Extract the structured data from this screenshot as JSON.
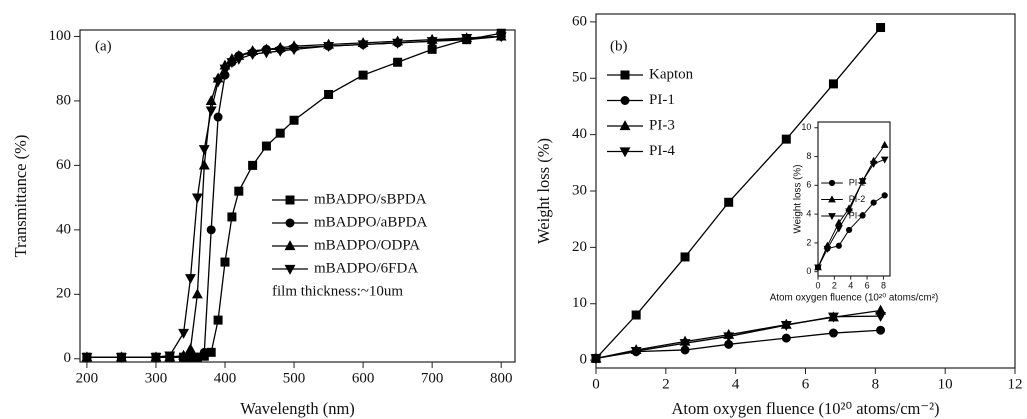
{
  "chart_data": [
    {
      "type": "line",
      "panel_label": "(a)",
      "x_label": "Wavelength (nm)",
      "y_label": "Transmittance (%)",
      "annotation": "film thickness:~10um",
      "xlim": [
        190,
        820
      ],
      "ylim": [
        -1,
        102
      ],
      "xticks": [
        200,
        300,
        400,
        500,
        600,
        700,
        800
      ],
      "yticks": [
        0,
        20,
        40,
        60,
        80,
        100
      ],
      "x": [
        200,
        250,
        300,
        320,
        340,
        350,
        360,
        370,
        380,
        390,
        400,
        410,
        420,
        440,
        460,
        480,
        500,
        550,
        600,
        650,
        700,
        750,
        800
      ],
      "series": [
        {
          "name": "mBADPO/sBPDA",
          "color": "#000000",
          "marker": "square",
          "values": [
            0.5,
            0.5,
            0.5,
            0.5,
            0.5,
            0.5,
            0.5,
            0.8,
            2,
            12,
            30,
            44,
            52,
            60,
            66,
            70,
            74,
            82,
            88,
            92,
            96,
            99,
            101
          ]
        },
        {
          "name": "mBADPO/aBPDA",
          "color": "#000000",
          "marker": "circle",
          "values": [
            0.5,
            0.5,
            0.5,
            0.5,
            0.5,
            0.5,
            0.5,
            2,
            40,
            75,
            88,
            92,
            94,
            95,
            96,
            96,
            96.5,
            97,
            97.5,
            98,
            98.5,
            99,
            100
          ]
        },
        {
          "name": "mBADPO/ODPA",
          "color": "#000000",
          "marker": "triangle-up",
          "values": [
            0.5,
            0.5,
            0.5,
            0.5,
            1,
            3,
            20,
            60,
            80,
            87,
            91,
            93,
            94,
            95.5,
            96,
            96.5,
            97,
            97.5,
            98,
            98.5,
            99,
            99.5,
            100
          ]
        },
        {
          "name": "mBADPO/6FDA",
          "color": "#000000",
          "marker": "triangle-down",
          "values": [
            0.5,
            0.5,
            0.5,
            1,
            8,
            25,
            50,
            65,
            77,
            86,
            90,
            92,
            93,
            94.5,
            95,
            95.5,
            96,
            97,
            97.5,
            98,
            98.5,
            99.5,
            100
          ]
        }
      ]
    },
    {
      "type": "line",
      "panel_label": "(b)",
      "x_label": "Atom oxygen fluence (10²⁰ atoms/cm⁻²)",
      "y_label": "Weight loss (%)",
      "xlim": [
        0,
        12
      ],
      "ylim": [
        -1.4,
        61.4
      ],
      "xticks": [
        0,
        2,
        4,
        6,
        8,
        10,
        12
      ],
      "yticks": [
        0,
        10,
        20,
        30,
        40,
        50,
        60
      ],
      "x": [
        0,
        1.15,
        2.55,
        3.8,
        5.45,
        6.8,
        8.15
      ],
      "series": [
        {
          "name": "Kapton",
          "color": "#000000",
          "marker": "square",
          "values": [
            0.3,
            8,
            18.3,
            28,
            39.2,
            49,
            59
          ]
        },
        {
          "name": "PI-1",
          "color": "#000000",
          "marker": "circle",
          "values": [
            0.3,
            1.5,
            1.8,
            2.8,
            3.9,
            4.8,
            5.3
          ]
        },
        {
          "name": "PI-3",
          "color": "#000000",
          "marker": "triangle-up",
          "values": [
            0.3,
            1.8,
            3.3,
            4.5,
            6.3,
            7.6,
            8.8
          ]
        },
        {
          "name": "PI-4",
          "color": "#000000",
          "marker": "triangle-down",
          "values": [
            0.3,
            1.6,
            3.0,
            4.2,
            6.2,
            7.7,
            7.8
          ]
        }
      ]
    },
    {
      "type": "line",
      "x_label": "Atom oxygen fluence (10²⁰ atoms/cm²)",
      "y_label": "Weight loss (%)",
      "xlim": [
        0,
        8.8
      ],
      "ylim": [
        -0.3,
        10.4
      ],
      "xticks": [
        0,
        2,
        4,
        6,
        8
      ],
      "yticks": [
        0,
        2,
        4,
        6,
        8,
        10
      ],
      "x": [
        0,
        1.15,
        2.55,
        3.8,
        5.45,
        6.8,
        8.15
      ],
      "series": [
        {
          "name": "PI-1",
          "color": "#000000",
          "marker": "circle",
          "values": [
            0.3,
            1.6,
            1.8,
            2.9,
            3.9,
            4.8,
            5.3
          ]
        },
        {
          "name": "PI-2",
          "color": "#000000",
          "marker": "triangle-up",
          "values": [
            0.3,
            1.8,
            3.4,
            4.4,
            6.3,
            7.7,
            8.8
          ]
        },
        {
          "name": "PI-3",
          "color": "#000000",
          "marker": "triangle-down",
          "values": [
            0.3,
            1.6,
            3.0,
            4.2,
            6.3,
            7.5,
            7.8
          ]
        }
      ]
    }
  ]
}
